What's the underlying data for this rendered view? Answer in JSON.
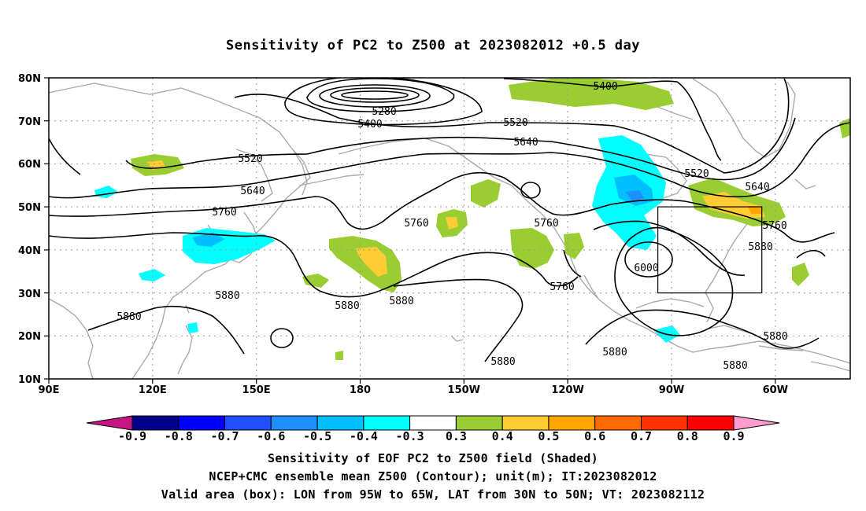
{
  "title": "Sensitivity of PC2 to Z500 at 2023082012 +0.5 day",
  "lat_labels": [
    "80N",
    "70N",
    "60N",
    "50N",
    "40N",
    "30N",
    "20N",
    "10N"
  ],
  "lon_labels": [
    "90E",
    "120E",
    "150E",
    "180",
    "150W",
    "120W",
    "90W",
    "60W"
  ],
  "contour_labels": [
    "5400",
    "5280",
    "5400",
    "5520",
    "5520",
    "5640",
    "5520",
    "5640",
    "5640",
    "5760",
    "5760",
    "5760",
    "5760",
    "5880",
    "5880",
    "5880",
    "5880",
    "5880",
    "5880",
    "5880",
    "5880",
    "6000",
    "5760",
    "5880"
  ],
  "colorbar": {
    "labels": [
      "-0.9",
      "-0.8",
      "-0.7",
      "-0.6",
      "-0.5",
      "-0.4",
      "-0.3",
      "0.3",
      "0.4",
      "0.5",
      "0.6",
      "0.7",
      "0.8",
      "0.9"
    ],
    "colors": [
      "#00008b",
      "#0000ff",
      "#1f4fff",
      "#1e90ff",
      "#00bfff",
      "#00ffff",
      "#ffffff",
      "#9acd32",
      "#ffcc33",
      "#ffa500",
      "#ff6a00",
      "#ff3300",
      "#ff0000"
    ],
    "low_tip_color": "#c71585",
    "high_tip_color": "#ff9ccf"
  },
  "valid_box": {
    "lon_min": -95,
    "lon_max": -65,
    "lat_min": 30,
    "lat_max": 50
  },
  "captions": [
    "Sensitivity of EOF PC2 to Z500 field (Shaded)",
    "NCEP+CMC ensemble mean Z500 (Contour); unit(m); IT:2023082012",
    "Valid area (box): LON from 95W to 65W, LAT from 30N to 50N; VT: 2023082112"
  ],
  "colors": {
    "coast": "#aaaaaa",
    "contour": "#000000",
    "grid": "#999999"
  }
}
